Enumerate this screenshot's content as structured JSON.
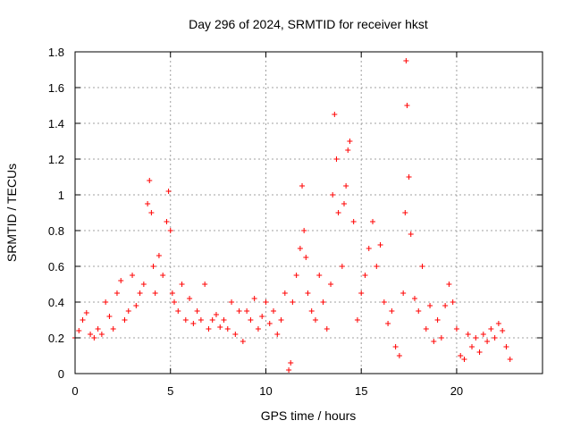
{
  "colors": {
    "points": "#ff0000",
    "grid": "#a0a0a0",
    "frame": "#000000"
  },
  "chart_data": {
    "type": "scatter",
    "title": "Day 296 of 2024, SRMTID for receiver hkst",
    "xlabel": "GPS time / hours",
    "ylabel": "SRMTID / TECUs",
    "xlim": [
      0,
      24.5
    ],
    "ylim": [
      0,
      1.8
    ],
    "xticks": [
      0,
      5,
      10,
      15,
      20
    ],
    "yticks": [
      0,
      0.2,
      0.4,
      0.6,
      0.8,
      1,
      1.2,
      1.4,
      1.6,
      1.8
    ],
    "xtick_labels": [
      "0",
      "5",
      "10",
      "15",
      "20"
    ],
    "ytick_labels": [
      "0",
      "0.2",
      "0.4",
      "0.6",
      "0.8",
      "1",
      "1.2",
      "1.4",
      "1.6",
      "1.8"
    ],
    "marker": "+",
    "grid": true,
    "series": [
      {
        "name": "SRMTID",
        "x": [
          0.0,
          0.2,
          0.4,
          0.6,
          0.8,
          1.0,
          1.2,
          1.4,
          1.6,
          1.8,
          2.0,
          2.2,
          2.4,
          2.6,
          2.8,
          3.0,
          3.2,
          3.4,
          3.6,
          3.8,
          3.9,
          4.0,
          4.1,
          4.2,
          4.4,
          4.6,
          4.8,
          4.9,
          5.0,
          5.1,
          5.2,
          5.4,
          5.6,
          5.8,
          6.0,
          6.2,
          6.4,
          6.6,
          6.8,
          7.0,
          7.2,
          7.4,
          7.6,
          7.8,
          8.0,
          8.2,
          8.4,
          8.6,
          8.8,
          9.0,
          9.2,
          9.4,
          9.6,
          9.8,
          10.0,
          10.2,
          10.4,
          10.6,
          10.8,
          11.0,
          11.2,
          11.3,
          11.4,
          11.6,
          11.8,
          11.9,
          12.0,
          12.1,
          12.2,
          12.4,
          12.6,
          12.8,
          13.0,
          13.2,
          13.4,
          13.5,
          13.6,
          13.7,
          13.8,
          14.0,
          14.1,
          14.2,
          14.3,
          14.4,
          14.6,
          14.8,
          15.0,
          15.2,
          15.4,
          15.6,
          15.8,
          16.0,
          16.2,
          16.4,
          16.6,
          16.8,
          17.0,
          17.2,
          17.3,
          17.35,
          17.4,
          17.5,
          17.6,
          17.8,
          18.0,
          18.2,
          18.4,
          18.6,
          18.8,
          19.0,
          19.2,
          19.4,
          19.6,
          19.8,
          20.0,
          20.2,
          20.4,
          20.6,
          20.8,
          21.0,
          21.2,
          21.4,
          21.6,
          21.8,
          22.0,
          22.2,
          22.4,
          22.6,
          22.8
        ],
        "y": [
          0.2,
          0.24,
          0.3,
          0.34,
          0.22,
          0.2,
          0.25,
          0.22,
          0.4,
          0.32,
          0.25,
          0.45,
          0.52,
          0.3,
          0.35,
          0.55,
          0.38,
          0.45,
          0.5,
          0.95,
          1.08,
          0.9,
          0.6,
          0.45,
          0.66,
          0.55,
          0.85,
          1.02,
          0.8,
          0.45,
          0.4,
          0.35,
          0.5,
          0.3,
          0.42,
          0.28,
          0.35,
          0.3,
          0.5,
          0.25,
          0.3,
          0.33,
          0.26,
          0.3,
          0.25,
          0.4,
          0.22,
          0.35,
          0.18,
          0.35,
          0.3,
          0.42,
          0.25,
          0.32,
          0.4,
          0.28,
          0.35,
          0.22,
          0.3,
          0.45,
          0.02,
          0.06,
          0.4,
          0.55,
          0.7,
          1.05,
          0.8,
          0.65,
          0.45,
          0.35,
          0.3,
          0.55,
          0.4,
          0.25,
          0.5,
          1.0,
          1.45,
          1.2,
          0.9,
          0.6,
          0.95,
          1.05,
          1.25,
          1.3,
          0.85,
          0.3,
          0.45,
          0.55,
          0.7,
          0.85,
          0.6,
          0.72,
          0.4,
          0.28,
          0.35,
          0.15,
          0.1,
          0.45,
          0.9,
          1.75,
          1.5,
          1.1,
          0.78,
          0.42,
          0.35,
          0.6,
          0.25,
          0.38,
          0.18,
          0.3,
          0.2,
          0.38,
          0.5,
          0.4,
          0.25,
          0.1,
          0.08,
          0.22,
          0.15,
          0.2,
          0.12,
          0.22,
          0.18,
          0.25,
          0.2,
          0.28,
          0.24,
          0.15,
          0.08
        ]
      }
    ]
  }
}
